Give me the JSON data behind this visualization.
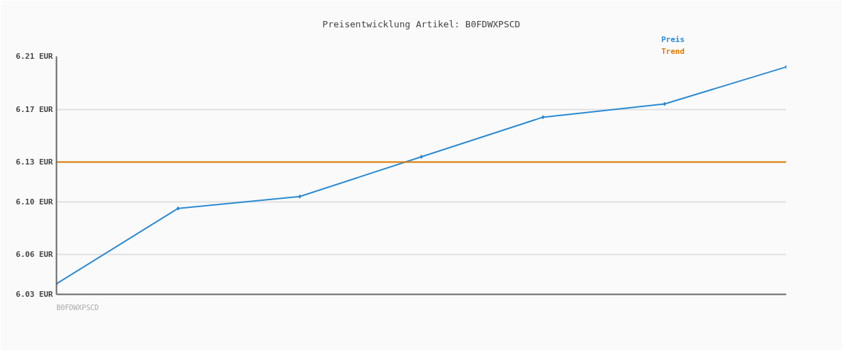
{
  "chart_data": {
    "type": "line",
    "title": "Preisentwicklung Artikel: B0FDWXPSCD",
    "categories": [
      null,
      null,
      null,
      null,
      null,
      null,
      null
    ],
    "series": [
      {
        "name": "Preis",
        "color": "#2a8ad4",
        "values": [
          6.038,
          6.095,
          6.104,
          6.134,
          6.164,
          6.174,
          6.202
        ],
        "marker": "diamond"
      },
      {
        "name": "Trend",
        "color": "#e07b00",
        "values": [
          6.13,
          6.13,
          6.13,
          6.13,
          6.13,
          6.13,
          6.13
        ]
      }
    ],
    "ylim": [
      6.03,
      6.21
    ],
    "yticks": [
      {
        "value": 6.03,
        "label": "6.03 EUR"
      },
      {
        "value": 6.06,
        "label": "6.06 EUR"
      },
      {
        "value": 6.1,
        "label": "6.10 EUR"
      },
      {
        "value": 6.13,
        "label": "6.13 EUR"
      },
      {
        "value": 6.17,
        "label": "6.17 EUR"
      },
      {
        "value": 6.21,
        "label": "6.21 EUR"
      }
    ],
    "grid": "y",
    "tick_labels": "y",
    "annotations": [
      "B0FDWXPSCD"
    ]
  }
}
